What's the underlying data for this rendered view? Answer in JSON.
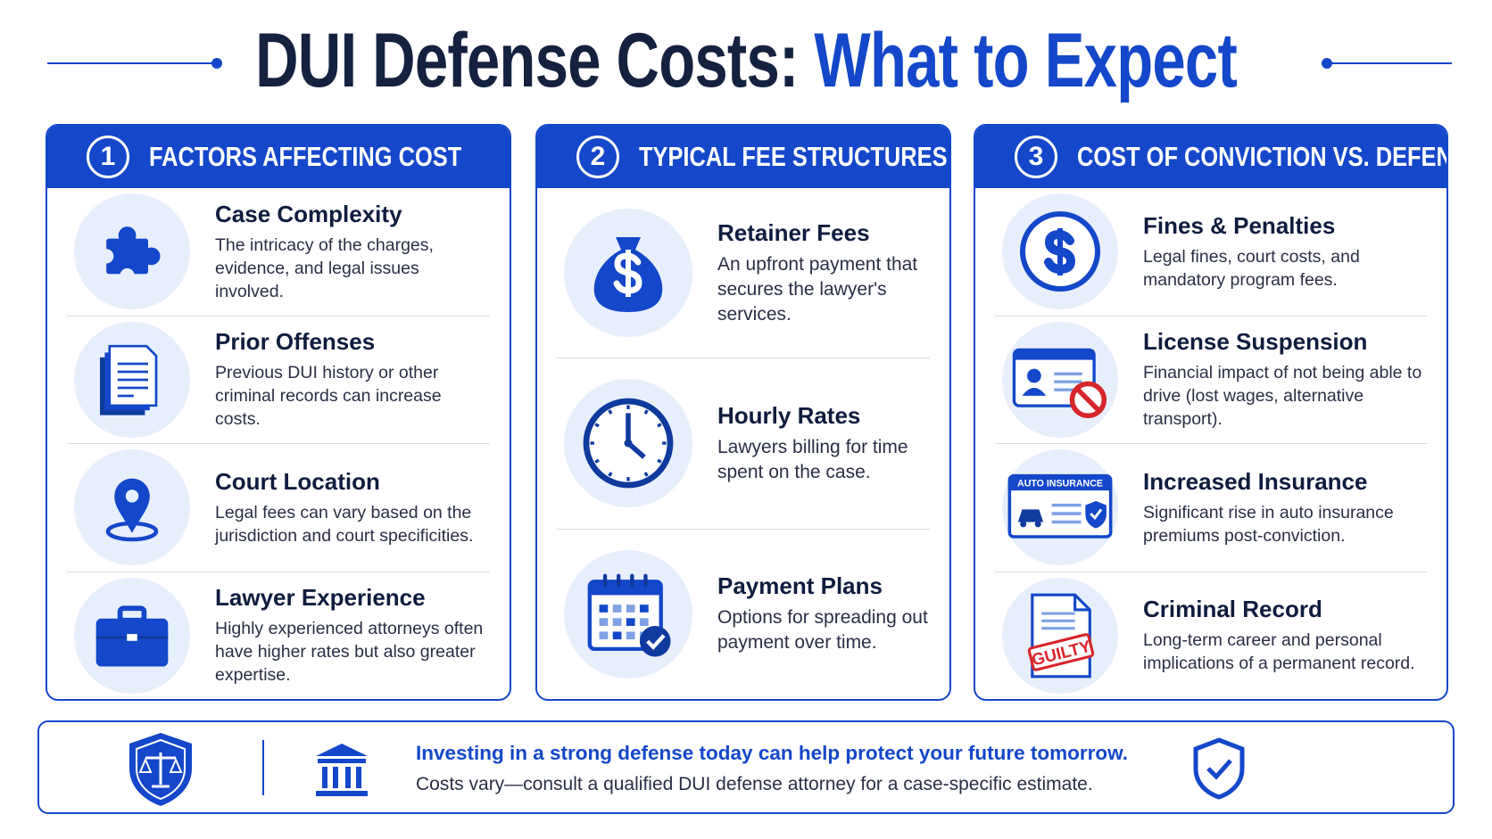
{
  "header": {
    "title_main": "DUI Defense Costs:",
    "title_accent": "What to Expect"
  },
  "columns": [
    {
      "number": "1",
      "title": "FACTORS AFFECTING COST",
      "items": [
        {
          "title": "Case Complexity",
          "text": "The intricacy of the charges, evidence, and legal issues involved."
        },
        {
          "title": "Prior Offenses",
          "text": "Previous DUI history or other criminal records can increase costs."
        },
        {
          "title": "Court Location",
          "text": "Legal fees can vary based on the jurisdiction and court specificities."
        },
        {
          "title": "Lawyer Experience",
          "text": "Highly experienced attorneys often have higher rates but also greater expertise."
        }
      ]
    },
    {
      "number": "2",
      "title": "TYPICAL FEE STRUCTURES",
      "items": [
        {
          "title": "Retainer Fees",
          "text": "An upfront payment that secures the lawyer's services."
        },
        {
          "title": "Hourly Rates",
          "text": "Lawyers billing for time spent on the case."
        },
        {
          "title": "Payment Plans",
          "text": "Options for spreading out payment over time."
        }
      ]
    },
    {
      "number": "3",
      "title": "COST OF CONVICTION VS. DEFENSE",
      "items": [
        {
          "title": "Fines & Penalties",
          "text": "Legal fines, court costs, and mandatory program fees."
        },
        {
          "title": "License Suspension",
          "text": "Financial impact of not being able to drive (lost wages, alternative transport)."
        },
        {
          "title": "Increased Insurance",
          "text": "Significant rise in auto insurance premiums post-conviction.",
          "icon_label": "AUTO INSURANCE"
        },
        {
          "title": "Criminal Record",
          "text": "Long-term career and personal implications of a permanent record.",
          "icon_label": "GUILTY"
        }
      ]
    }
  ],
  "footer": {
    "headline": "Investing in a strong defense today can help protect your future tomorrow.",
    "note": "Costs vary—consult a qualified DUI defense attorney for a case-specific estimate."
  }
}
